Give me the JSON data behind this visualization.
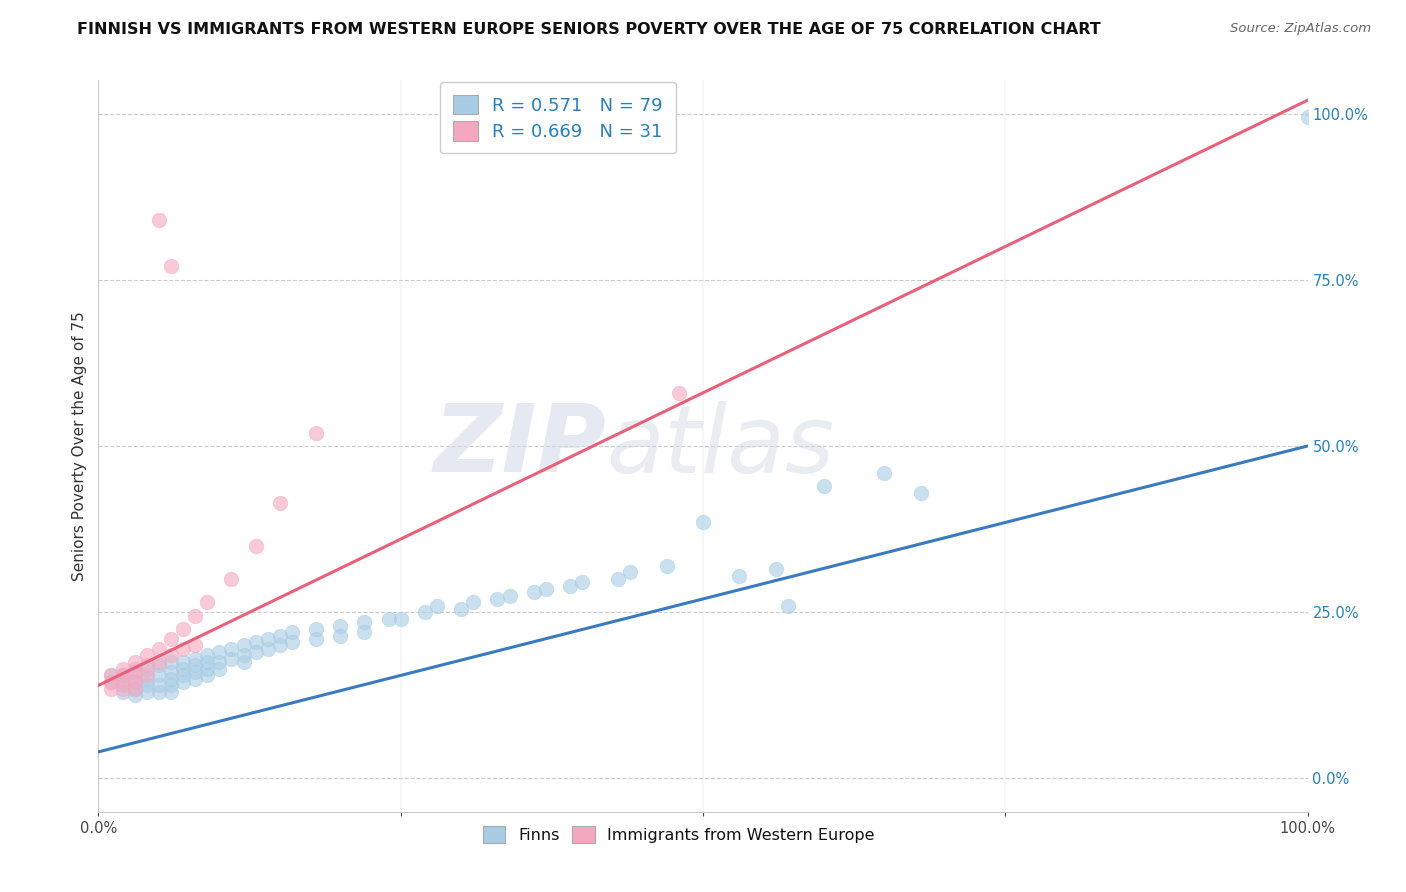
{
  "title": "FINNISH VS IMMIGRANTS FROM WESTERN EUROPE SENIORS POVERTY OVER THE AGE OF 75 CORRELATION CHART",
  "source": "Source: ZipAtlas.com",
  "ylabel": "Seniors Poverty Over the Age of 75",
  "xlim": [
    0,
    1
  ],
  "ylim": [
    -0.05,
    1.05
  ],
  "right_yticks": [
    0.0,
    0.25,
    0.5,
    0.75,
    1.0
  ],
  "right_yticklabels": [
    "0.0%",
    "25.0%",
    "50.0%",
    "75.0%",
    "100.0%"
  ],
  "blue_R": 0.571,
  "blue_N": 79,
  "pink_R": 0.669,
  "pink_N": 31,
  "blue_color": "#a8cce4",
  "pink_color": "#f4a8bf",
  "blue_line_color": "#3a7abf",
  "pink_line_color": "#e8607a",
  "blue_line": [
    0.0,
    0.04,
    1.0,
    0.5
  ],
  "pink_line": [
    0.0,
    0.14,
    1.0,
    1.02
  ],
  "blue_scatter": [
    [
      0.01,
      0.155
    ],
    [
      0.01,
      0.145
    ],
    [
      0.02,
      0.155
    ],
    [
      0.02,
      0.14
    ],
    [
      0.02,
      0.13
    ],
    [
      0.03,
      0.16
    ],
    [
      0.03,
      0.145
    ],
    [
      0.03,
      0.135
    ],
    [
      0.03,
      0.125
    ],
    [
      0.04,
      0.165
    ],
    [
      0.04,
      0.15
    ],
    [
      0.04,
      0.14
    ],
    [
      0.04,
      0.13
    ],
    [
      0.05,
      0.17
    ],
    [
      0.05,
      0.155
    ],
    [
      0.05,
      0.14
    ],
    [
      0.05,
      0.13
    ],
    [
      0.06,
      0.175
    ],
    [
      0.06,
      0.16
    ],
    [
      0.06,
      0.15
    ],
    [
      0.06,
      0.14
    ],
    [
      0.06,
      0.13
    ],
    [
      0.07,
      0.175
    ],
    [
      0.07,
      0.165
    ],
    [
      0.07,
      0.155
    ],
    [
      0.07,
      0.145
    ],
    [
      0.08,
      0.18
    ],
    [
      0.08,
      0.17
    ],
    [
      0.08,
      0.16
    ],
    [
      0.08,
      0.15
    ],
    [
      0.09,
      0.185
    ],
    [
      0.09,
      0.175
    ],
    [
      0.09,
      0.165
    ],
    [
      0.09,
      0.155
    ],
    [
      0.1,
      0.19
    ],
    [
      0.1,
      0.175
    ],
    [
      0.1,
      0.165
    ],
    [
      0.11,
      0.195
    ],
    [
      0.11,
      0.18
    ],
    [
      0.12,
      0.2
    ],
    [
      0.12,
      0.185
    ],
    [
      0.12,
      0.175
    ],
    [
      0.13,
      0.205
    ],
    [
      0.13,
      0.19
    ],
    [
      0.14,
      0.21
    ],
    [
      0.14,
      0.195
    ],
    [
      0.15,
      0.215
    ],
    [
      0.15,
      0.2
    ],
    [
      0.16,
      0.22
    ],
    [
      0.16,
      0.205
    ],
    [
      0.18,
      0.225
    ],
    [
      0.18,
      0.21
    ],
    [
      0.2,
      0.23
    ],
    [
      0.2,
      0.215
    ],
    [
      0.22,
      0.235
    ],
    [
      0.22,
      0.22
    ],
    [
      0.24,
      0.24
    ],
    [
      0.25,
      0.24
    ],
    [
      0.27,
      0.25
    ],
    [
      0.28,
      0.26
    ],
    [
      0.3,
      0.255
    ],
    [
      0.31,
      0.265
    ],
    [
      0.33,
      0.27
    ],
    [
      0.34,
      0.275
    ],
    [
      0.36,
      0.28
    ],
    [
      0.37,
      0.285
    ],
    [
      0.39,
      0.29
    ],
    [
      0.4,
      0.295
    ],
    [
      0.43,
      0.3
    ],
    [
      0.44,
      0.31
    ],
    [
      0.47,
      0.32
    ],
    [
      0.5,
      0.385
    ],
    [
      0.53,
      0.305
    ],
    [
      0.56,
      0.315
    ],
    [
      0.57,
      0.26
    ],
    [
      0.6,
      0.44
    ],
    [
      0.65,
      0.46
    ],
    [
      0.68,
      0.43
    ],
    [
      1.0,
      0.995
    ]
  ],
  "pink_scatter": [
    [
      0.01,
      0.155
    ],
    [
      0.01,
      0.145
    ],
    [
      0.01,
      0.135
    ],
    [
      0.02,
      0.165
    ],
    [
      0.02,
      0.155
    ],
    [
      0.02,
      0.145
    ],
    [
      0.02,
      0.135
    ],
    [
      0.03,
      0.175
    ],
    [
      0.03,
      0.165
    ],
    [
      0.03,
      0.155
    ],
    [
      0.03,
      0.145
    ],
    [
      0.03,
      0.135
    ],
    [
      0.04,
      0.185
    ],
    [
      0.04,
      0.17
    ],
    [
      0.04,
      0.155
    ],
    [
      0.05,
      0.195
    ],
    [
      0.05,
      0.175
    ],
    [
      0.06,
      0.21
    ],
    [
      0.06,
      0.185
    ],
    [
      0.07,
      0.225
    ],
    [
      0.07,
      0.195
    ],
    [
      0.08,
      0.245
    ],
    [
      0.08,
      0.2
    ],
    [
      0.09,
      0.265
    ],
    [
      0.11,
      0.3
    ],
    [
      0.13,
      0.35
    ],
    [
      0.15,
      0.415
    ],
    [
      0.18,
      0.52
    ],
    [
      0.05,
      0.84
    ],
    [
      0.06,
      0.77
    ],
    [
      0.48,
      0.58
    ]
  ],
  "watermark_zip": "ZIP",
  "watermark_atlas": "atlas",
  "legend_blue_label": "Finns",
  "legend_pink_label": "Immigrants from Western Europe",
  "title_fontsize": 11.5,
  "axis_label_fontsize": 11,
  "tick_fontsize": 10.5
}
